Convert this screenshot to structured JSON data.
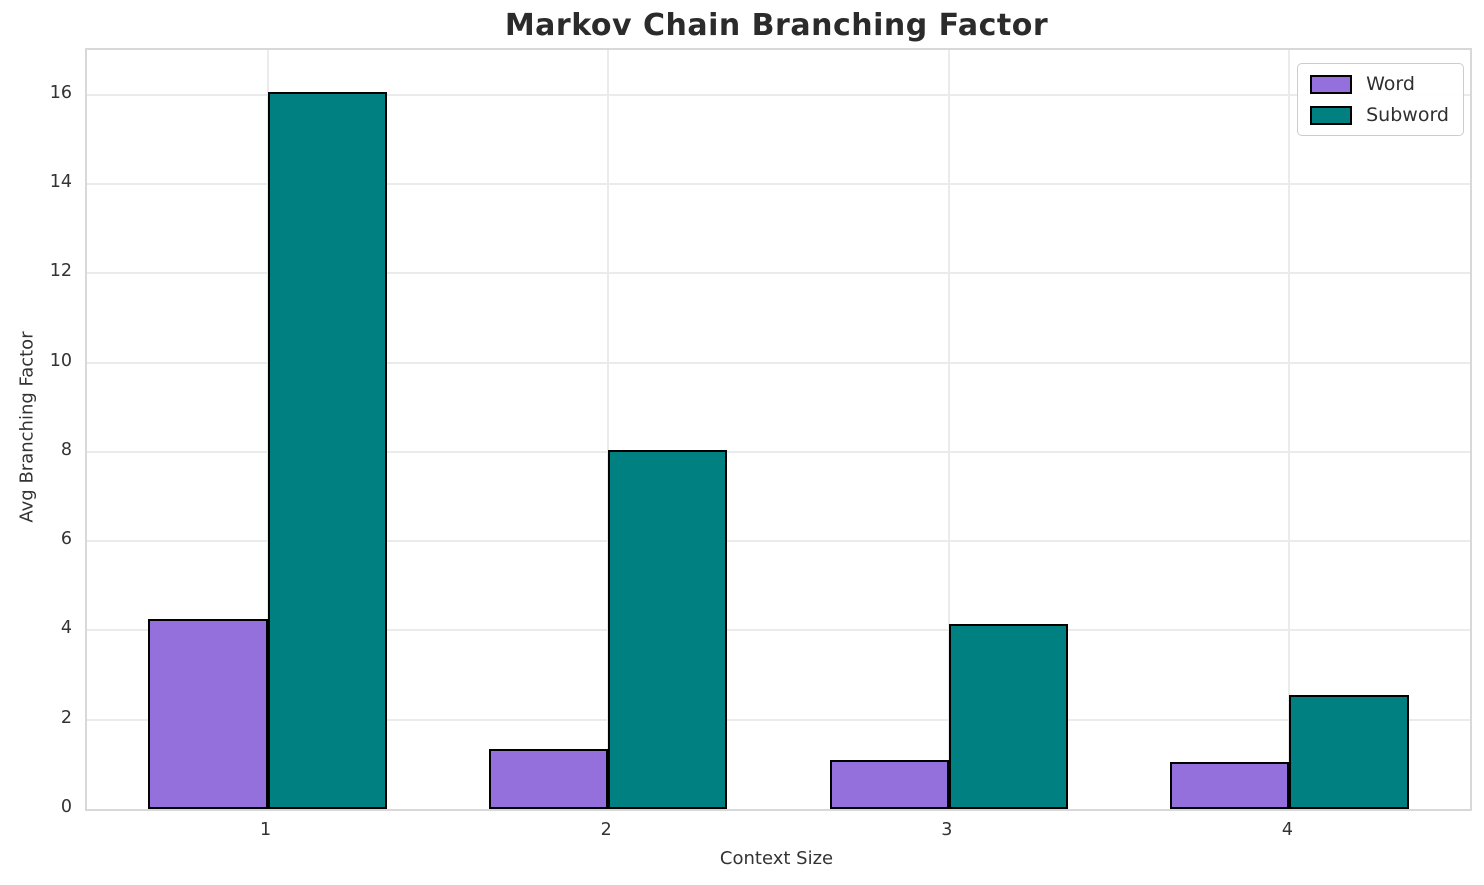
{
  "chart_data": {
    "type": "bar",
    "title": "Markov Chain Branching Factor",
    "xlabel": "Context Size",
    "ylabel": "Avg Branching Factor",
    "categories": [
      "1",
      "2",
      "3",
      "4"
    ],
    "series": [
      {
        "name": "Word",
        "color": "#9370DB",
        "values": [
          4.25,
          1.35,
          1.1,
          1.05
        ]
      },
      {
        "name": "Subword",
        "color": "#008080",
        "values": [
          16.05,
          8.05,
          4.15,
          2.55
        ]
      }
    ],
    "ylim": [
      0,
      17
    ],
    "xlim": [
      -0.53,
      3.53
    ],
    "yticks": [
      0,
      2,
      4,
      6,
      8,
      10,
      12,
      14,
      16
    ],
    "bar_width_units": 0.35,
    "grid": true,
    "legend_position": "upper right",
    "legend_labels": [
      "Word",
      "Subword"
    ],
    "bar_edge_color": "#000000",
    "colors": {
      "grid": "#ebebeb",
      "spine": "#d8d8d8",
      "tick_text": "#333333",
      "title_text": "#2b2b2b",
      "background": "#ffffff"
    }
  }
}
